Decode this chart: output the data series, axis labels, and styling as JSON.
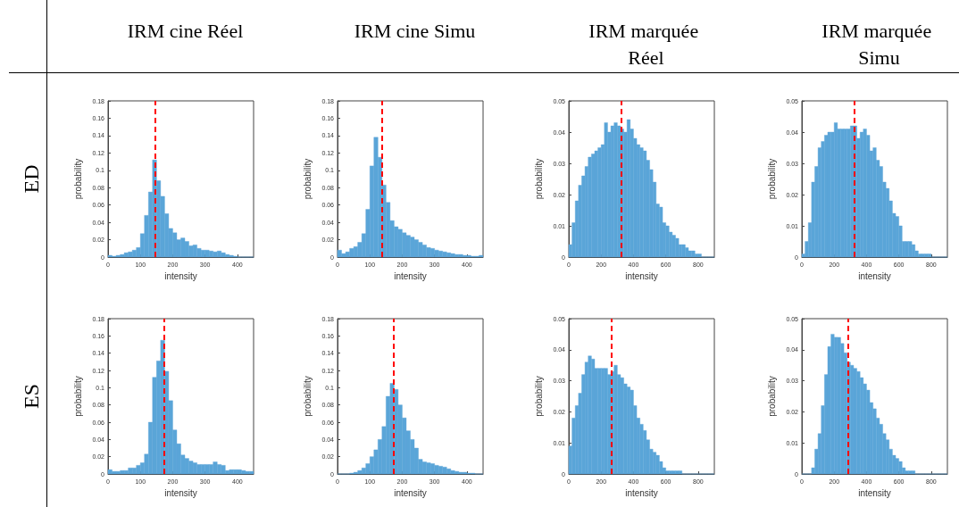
{
  "chart_data": [
    {
      "type": "histogram",
      "title": "IRM cine Réel",
      "annotations": [
        "ED"
      ],
      "xlabel": "intensity",
      "ylabel": "probability",
      "color": "#5aa5d8",
      "xlim": [
        0,
        450
      ],
      "xticks": [
        0,
        100,
        200,
        300,
        400
      ],
      "ylim": [
        0,
        0.18
      ],
      "yticks": [
        0,
        0.02,
        0.04,
        0.06,
        0.08,
        0.1,
        0.12,
        0.14,
        0.16,
        0.18
      ],
      "ref_lines": [
        {
          "axis": "x",
          "value": 145,
          "color": "#ff0000",
          "line_style": "dashed"
        }
      ],
      "bins": [
        0,
        12.5,
        25,
        37.5,
        50,
        62.5,
        75,
        87.5,
        100,
        112.5,
        125,
        137.5,
        150,
        162.5,
        175,
        187.5,
        200,
        212.5,
        225,
        237.5,
        250,
        262.5,
        275,
        287.5,
        300,
        312.5,
        325,
        337.5,
        350,
        362.5,
        375,
        387.5,
        400,
        412.5,
        425,
        437.5,
        450
      ],
      "values": [
        0.002,
        0.001,
        0.002,
        0.003,
        0.005,
        0.006,
        0.008,
        0.011,
        0.027,
        0.048,
        0.075,
        0.112,
        0.088,
        0.07,
        0.05,
        0.033,
        0.028,
        0.02,
        0.022,
        0.018,
        0.013,
        0.014,
        0.01,
        0.008,
        0.008,
        0.007,
        0.006,
        0.007,
        0.005,
        0.003,
        0.002,
        0.001,
        0,
        0,
        0,
        0
      ]
    },
    {
      "type": "histogram",
      "title": "IRM cine Simu",
      "xlabel": "intensity",
      "ylabel": "probability",
      "color": "#5aa5d8",
      "xlim": [
        0,
        450
      ],
      "xticks": [
        0,
        100,
        200,
        300,
        400
      ],
      "ylim": [
        0,
        0.18
      ],
      "yticks": [
        0,
        0.02,
        0.04,
        0.06,
        0.08,
        0.1,
        0.12,
        0.14,
        0.16,
        0.18
      ],
      "ref_lines": [
        {
          "axis": "x",
          "value": 136,
          "color": "#ff0000",
          "line_style": "dashed"
        }
      ],
      "bins": [
        0,
        12.5,
        25,
        37.5,
        50,
        62.5,
        75,
        87.5,
        100,
        112.5,
        125,
        137.5,
        150,
        162.5,
        175,
        187.5,
        200,
        212.5,
        225,
        237.5,
        250,
        262.5,
        275,
        287.5,
        300,
        312.5,
        325,
        337.5,
        350,
        362.5,
        375,
        387.5,
        400,
        412.5,
        425,
        437.5,
        450
      ],
      "values": [
        0.008,
        0.004,
        0.006,
        0.01,
        0.012,
        0.017,
        0.027,
        0.055,
        0.105,
        0.138,
        0.115,
        0.083,
        0.063,
        0.042,
        0.035,
        0.032,
        0.028,
        0.025,
        0.023,
        0.02,
        0.017,
        0.014,
        0.011,
        0.01,
        0.008,
        0.007,
        0.006,
        0.005,
        0.004,
        0.003,
        0.003,
        0.002,
        0.002,
        0.001,
        0.001,
        0.002
      ]
    },
    {
      "type": "histogram",
      "title": "IRM marquée Réel",
      "xlabel": "intensity",
      "ylabel": "probability",
      "color": "#5aa5d8",
      "xlim": [
        0,
        900
      ],
      "xticks": [
        0,
        200,
        400,
        600,
        800
      ],
      "ylim": [
        0,
        0.05
      ],
      "yticks": [
        0,
        0.01,
        0.02,
        0.03,
        0.04,
        0.05
      ],
      "ref_lines": [
        {
          "axis": "x",
          "value": 325,
          "color": "#ff0000",
          "line_style": "dashed"
        }
      ],
      "bins": [
        0,
        20,
        40,
        60,
        80,
        100,
        120,
        140,
        160,
        180,
        200,
        220,
        240,
        260,
        280,
        300,
        320,
        340,
        360,
        380,
        400,
        420,
        440,
        460,
        480,
        500,
        520,
        540,
        560,
        580,
        600,
        620,
        640,
        660,
        680,
        700,
        720,
        740,
        760,
        780,
        800,
        820,
        840,
        860,
        880,
        900
      ],
      "values": [
        0.004,
        0.011,
        0.018,
        0.023,
        0.026,
        0.029,
        0.032,
        0.033,
        0.034,
        0.035,
        0.036,
        0.043,
        0.04,
        0.042,
        0.043,
        0.042,
        0.041,
        0.04,
        0.044,
        0.041,
        0.038,
        0.036,
        0.035,
        0.034,
        0.031,
        0.028,
        0.024,
        0.017,
        0.016,
        0.011,
        0.01,
        0.008,
        0.007,
        0.006,
        0.004,
        0.004,
        0.003,
        0.002,
        0.002,
        0.001,
        0.001,
        0,
        0,
        0,
        0
      ]
    },
    {
      "type": "histogram",
      "title": "IRM marquée Simu",
      "xlabel": "intensity",
      "ylabel": "probability",
      "color": "#5aa5d8",
      "xlim": [
        0,
        900
      ],
      "xticks": [
        0,
        200,
        400,
        600,
        800
      ],
      "ylim": [
        0,
        0.05
      ],
      "yticks": [
        0,
        0.01,
        0.02,
        0.03,
        0.04,
        0.05
      ],
      "ref_lines": [
        {
          "axis": "x",
          "value": 322,
          "color": "#ff0000",
          "line_style": "dashed"
        }
      ],
      "bins": [
        0,
        20,
        40,
        60,
        80,
        100,
        120,
        140,
        160,
        180,
        200,
        220,
        240,
        260,
        280,
        300,
        320,
        340,
        360,
        380,
        400,
        420,
        440,
        460,
        480,
        500,
        520,
        540,
        560,
        580,
        600,
        620,
        640,
        660,
        680,
        700,
        720,
        740,
        760,
        780,
        800,
        820,
        840,
        860,
        880,
        900
      ],
      "values": [
        0.001,
        0.005,
        0.011,
        0.024,
        0.029,
        0.035,
        0.037,
        0.039,
        0.04,
        0.04,
        0.043,
        0.041,
        0.041,
        0.041,
        0.041,
        0.042,
        0.042,
        0.038,
        0.04,
        0.041,
        0.039,
        0.034,
        0.035,
        0.031,
        0.029,
        0.024,
        0.022,
        0.018,
        0.014,
        0.013,
        0.01,
        0.005,
        0.005,
        0.005,
        0.004,
        0.002,
        0.001,
        0.001,
        0.001,
        0.001,
        0,
        0,
        0,
        0,
        0
      ]
    },
    {
      "type": "histogram",
      "annotations": [
        "ES"
      ],
      "xlabel": "intensity",
      "ylabel": "probability",
      "color": "#5aa5d8",
      "xlim": [
        0,
        450
      ],
      "xticks": [
        0,
        100,
        200,
        300,
        400
      ],
      "ylim": [
        0,
        0.18
      ],
      "yticks": [
        0,
        0.02,
        0.04,
        0.06,
        0.08,
        0.1,
        0.12,
        0.14,
        0.16,
        0.18
      ],
      "ref_lines": [
        {
          "axis": "x",
          "value": 174,
          "color": "#ff0000",
          "line_style": "dashed"
        }
      ],
      "bins": [
        0,
        12.5,
        25,
        37.5,
        50,
        62.5,
        75,
        87.5,
        100,
        112.5,
        125,
        137.5,
        150,
        162.5,
        175,
        187.5,
        200,
        212.5,
        225,
        237.5,
        250,
        262.5,
        275,
        287.5,
        300,
        312.5,
        325,
        337.5,
        350,
        362.5,
        375,
        387.5,
        400,
        412.5,
        425,
        437.5,
        450
      ],
      "values": [
        0.005,
        0.003,
        0.003,
        0.004,
        0.004,
        0.007,
        0.007,
        0.01,
        0.013,
        0.023,
        0.06,
        0.112,
        0.131,
        0.155,
        0.119,
        0.085,
        0.051,
        0.035,
        0.022,
        0.018,
        0.015,
        0.013,
        0.011,
        0.011,
        0.011,
        0.011,
        0.014,
        0.011,
        0.01,
        0.004,
        0.005,
        0.005,
        0.005,
        0.004,
        0.003,
        0.003
      ]
    },
    {
      "type": "histogram",
      "xlabel": "intensity",
      "ylabel": "probability",
      "color": "#5aa5d8",
      "xlim": [
        0,
        450
      ],
      "xticks": [
        0,
        100,
        200,
        300,
        400
      ],
      "ylim": [
        0,
        0.18
      ],
      "yticks": [
        0,
        0.02,
        0.04,
        0.06,
        0.08,
        0.1,
        0.12,
        0.14,
        0.16,
        0.18
      ],
      "ref_lines": [
        {
          "axis": "x",
          "value": 174,
          "color": "#ff0000",
          "line_style": "dashed"
        }
      ],
      "bins": [
        0,
        12.5,
        25,
        37.5,
        50,
        62.5,
        75,
        87.5,
        100,
        112.5,
        125,
        137.5,
        150,
        162.5,
        175,
        187.5,
        200,
        212.5,
        225,
        237.5,
        250,
        262.5,
        275,
        287.5,
        300,
        312.5,
        325,
        337.5,
        350,
        362.5,
        375,
        387.5,
        400,
        412.5,
        425,
        437.5,
        450
      ],
      "values": [
        0,
        0,
        0,
        0.001,
        0.002,
        0.004,
        0.007,
        0.012,
        0.02,
        0.028,
        0.04,
        0.055,
        0.09,
        0.105,
        0.098,
        0.08,
        0.065,
        0.05,
        0.04,
        0.03,
        0.017,
        0.014,
        0.013,
        0.012,
        0.01,
        0.009,
        0.008,
        0.006,
        0.004,
        0.003,
        0.002,
        0.002,
        0.001,
        0.001,
        0,
        0
      ]
    },
    {
      "type": "histogram",
      "xlabel": "intensity",
      "ylabel": "probability",
      "color": "#5aa5d8",
      "xlim": [
        0,
        900
      ],
      "xticks": [
        0,
        200,
        400,
        600,
        800
      ],
      "ylim": [
        0,
        0.05
      ],
      "yticks": [
        0,
        0.01,
        0.02,
        0.03,
        0.04,
        0.05
      ],
      "ref_lines": [
        {
          "axis": "x",
          "value": 262,
          "color": "#ff0000",
          "line_style": "dashed"
        }
      ],
      "bins": [
        0,
        20,
        40,
        60,
        80,
        100,
        120,
        140,
        160,
        180,
        200,
        220,
        240,
        260,
        280,
        300,
        320,
        340,
        360,
        380,
        400,
        420,
        440,
        460,
        480,
        500,
        520,
        540,
        560,
        580,
        600,
        620,
        640,
        660,
        680,
        700,
        720,
        740,
        760,
        780,
        800,
        820,
        840,
        860,
        880,
        900
      ],
      "values": [
        0.009,
        0.018,
        0.022,
        0.026,
        0.032,
        0.036,
        0.038,
        0.037,
        0.034,
        0.034,
        0.034,
        0.034,
        0.032,
        0.033,
        0.035,
        0.032,
        0.031,
        0.029,
        0.028,
        0.027,
        0.022,
        0.018,
        0.016,
        0.014,
        0.011,
        0.008,
        0.007,
        0.006,
        0.004,
        0.002,
        0.001,
        0.001,
        0.001,
        0.001,
        0.001,
        0,
        0,
        0,
        0,
        0,
        0,
        0,
        0,
        0,
        0
      ]
    },
    {
      "type": "histogram",
      "xlabel": "intensity",
      "ylabel": "probability",
      "color": "#5aa5d8",
      "xlim": [
        0,
        900
      ],
      "xticks": [
        0,
        200,
        400,
        600,
        800
      ],
      "ylim": [
        0,
        0.05
      ],
      "yticks": [
        0,
        0.01,
        0.02,
        0.03,
        0.04,
        0.05
      ],
      "ref_lines": [
        {
          "axis": "x",
          "value": 287,
          "color": "#ff0000",
          "line_style": "dashed"
        }
      ],
      "bins": [
        0,
        20,
        40,
        60,
        80,
        100,
        120,
        140,
        160,
        180,
        200,
        220,
        240,
        260,
        280,
        300,
        320,
        340,
        360,
        380,
        400,
        420,
        440,
        460,
        480,
        500,
        520,
        540,
        560,
        580,
        600,
        620,
        640,
        660,
        680,
        700,
        720,
        740,
        760,
        780,
        800,
        820,
        840,
        860,
        880,
        900
      ],
      "values": [
        0,
        0,
        0,
        0.002,
        0.008,
        0.013,
        0.022,
        0.032,
        0.041,
        0.045,
        0.044,
        0.044,
        0.042,
        0.039,
        0.036,
        0.035,
        0.034,
        0.033,
        0.031,
        0.029,
        0.027,
        0.023,
        0.021,
        0.018,
        0.016,
        0.013,
        0.011,
        0.008,
        0.006,
        0.005,
        0.004,
        0.002,
        0.001,
        0.001,
        0.001,
        0,
        0,
        0,
        0,
        0,
        0,
        0,
        0,
        0,
        0
      ]
    }
  ]
}
